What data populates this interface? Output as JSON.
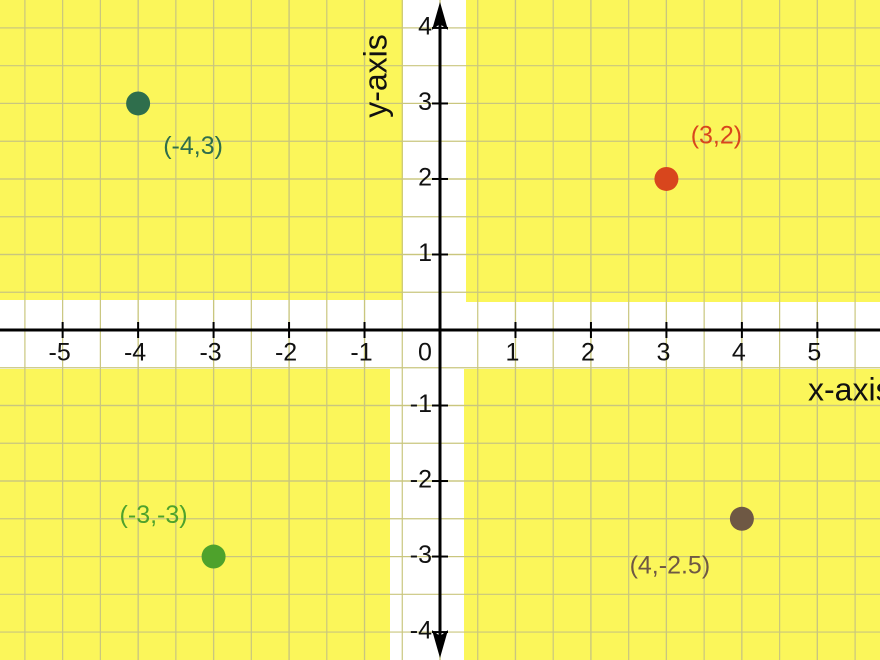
{
  "chart_data": {
    "type": "scatter",
    "x_label": "x-axis",
    "y_label": "y-axis",
    "xlim": [
      -5.83,
      5.83
    ],
    "ylim": [
      -4.37,
      4.37
    ],
    "xticks": [
      -5,
      -4,
      -3,
      -2,
      -1,
      0,
      1,
      2,
      3,
      4,
      5
    ],
    "yticks": [
      -4,
      -3,
      -2,
      -1,
      1,
      2,
      3,
      4
    ],
    "grid": true,
    "points": [
      {
        "x": -4,
        "y": 3,
        "label": "(-4,3)",
        "color": "#2f6e4c"
      },
      {
        "x": 3,
        "y": 2,
        "label": "(3,2)",
        "color": "#d8461d"
      },
      {
        "x": -3,
        "y": -3,
        "label": "(-3,-3)",
        "color": "#4ea22c"
      },
      {
        "x": 4,
        "y": -2.5,
        "label": "(4,-2.5)",
        "color": "#6e5844"
      }
    ]
  }
}
